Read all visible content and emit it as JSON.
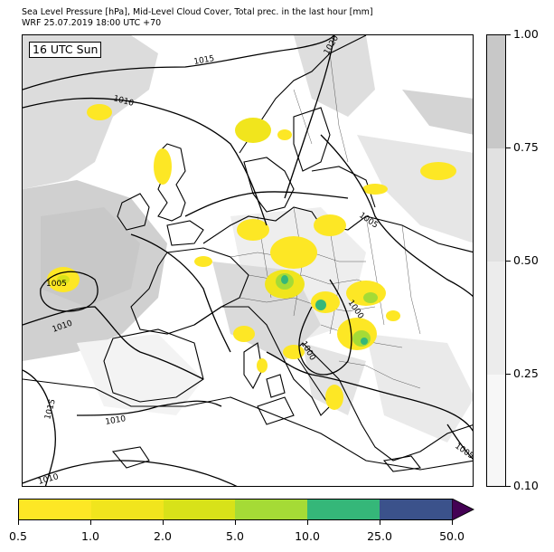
{
  "header": {
    "line1": "Sea Level Pressure [hPa], Mid-Level Cloud Cover, Total prec. in the last hour [mm]",
    "line2": "WRF 25.07.2019 18:00 UTC +70"
  },
  "map": {
    "time_label": "16 UTC Sun",
    "isobar_labels": [
      "1015",
      "1010",
      "1020",
      "1005",
      "1005",
      "1010",
      "1000",
      "1000",
      "1015",
      "1010",
      "1005",
      "1010"
    ]
  },
  "cloud_cover_colorbar": {
    "ticks": [
      "1.00",
      "0.75",
      "0.50",
      "0.25",
      "0.10"
    ],
    "colors": [
      "#c8c8c8",
      "#e1e1e1",
      "#ececec",
      "#f7f7f7"
    ]
  },
  "precip_colorbar": {
    "ticks": [
      "0.5",
      "1.0",
      "2.0",
      "5.0",
      "10.0",
      "25.0",
      "50.0"
    ],
    "colors": [
      "#fde725",
      "#f1e51d",
      "#d8e219",
      "#a5db36",
      "#35b779",
      "#3b528b"
    ],
    "extend_color": "#440154"
  }
}
